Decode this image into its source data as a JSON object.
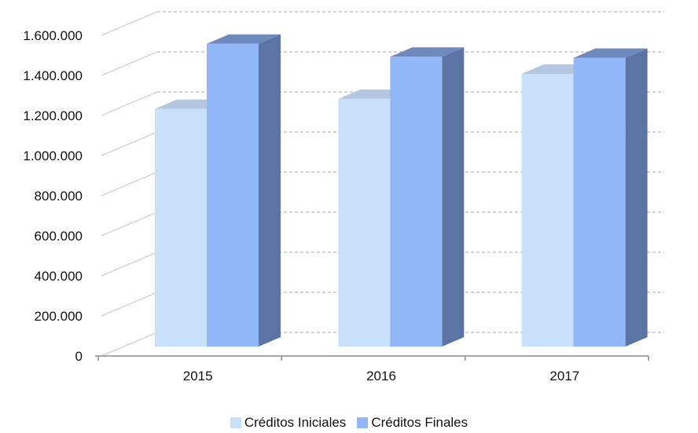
{
  "chart_data": {
    "type": "bar",
    "categories": [
      "2015",
      "2016",
      "2017"
    ],
    "series": [
      {
        "name": "Créditos Iniciales",
        "values": [
          1280000,
          1330000,
          1455000
        ],
        "color": "#c9e0fb"
      },
      {
        "name": "Créditos Finales",
        "values": [
          1605000,
          1540000,
          1535000
        ],
        "color": "#91b7f8"
      }
    ],
    "ylim": [
      0,
      1600000
    ],
    "yticks": [
      "0",
      "200.000",
      "400.000",
      "600.000",
      "800.000",
      "1.000.000",
      "1.200.000",
      "1.400.000",
      "1.600.000"
    ],
    "ytick_values": [
      0,
      200000,
      400000,
      600000,
      800000,
      1000000,
      1200000,
      1400000,
      1600000
    ],
    "grid": true,
    "legend_position": "bottom",
    "bar_style": "3d-clustered"
  }
}
